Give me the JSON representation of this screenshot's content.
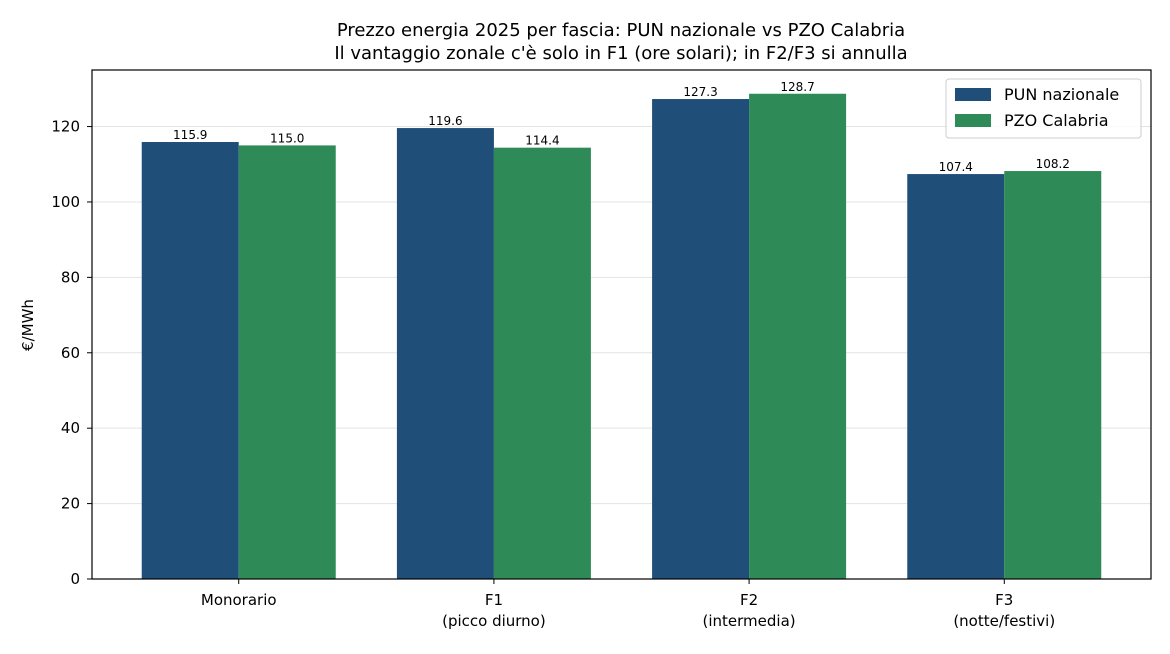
{
  "chart_data": {
    "type": "bar",
    "title_lines": [
      "Prezzo energia 2025 per fascia: PUN nazionale vs PZO Calabria",
      "Il vantaggio zonale c'è solo in F1 (ore solari); in F2/F3 si annulla"
    ],
    "xlabel": "",
    "ylabel": "€/MWh",
    "ylim": [
      0,
      135
    ],
    "yticks": [
      0,
      20,
      40,
      60,
      80,
      100,
      120
    ],
    "grid": "horizontal",
    "legend_position": "top-right",
    "categories": [
      [
        "Monorario"
      ],
      [
        "F1",
        "(picco diurno)"
      ],
      [
        "F2",
        "(intermedia)"
      ],
      [
        "F3",
        "(notte/festivi)"
      ]
    ],
    "series": [
      {
        "name": "PUN nazionale",
        "color": "#1f4e79",
        "values": [
          115.9,
          119.6,
          127.3,
          107.4
        ]
      },
      {
        "name": "PZO Calabria",
        "color": "#2e8b57",
        "values": [
          115.0,
          114.4,
          128.7,
          108.2
        ]
      }
    ]
  }
}
